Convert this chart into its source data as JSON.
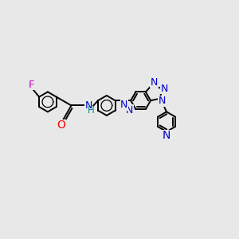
{
  "background_color": "#e8e8e8",
  "bond_color": "#000000",
  "nitrogen_color": "#0000cc",
  "oxygen_color": "#ff0000",
  "fluorine_color": "#cc00cc",
  "hydrogen_color": "#008888",
  "line_width": 1.4,
  "figsize": [
    3.0,
    3.0
  ],
  "dpi": 100,
  "xlim": [
    -3.0,
    2.8
  ],
  "ylim": [
    -2.0,
    1.5
  ]
}
